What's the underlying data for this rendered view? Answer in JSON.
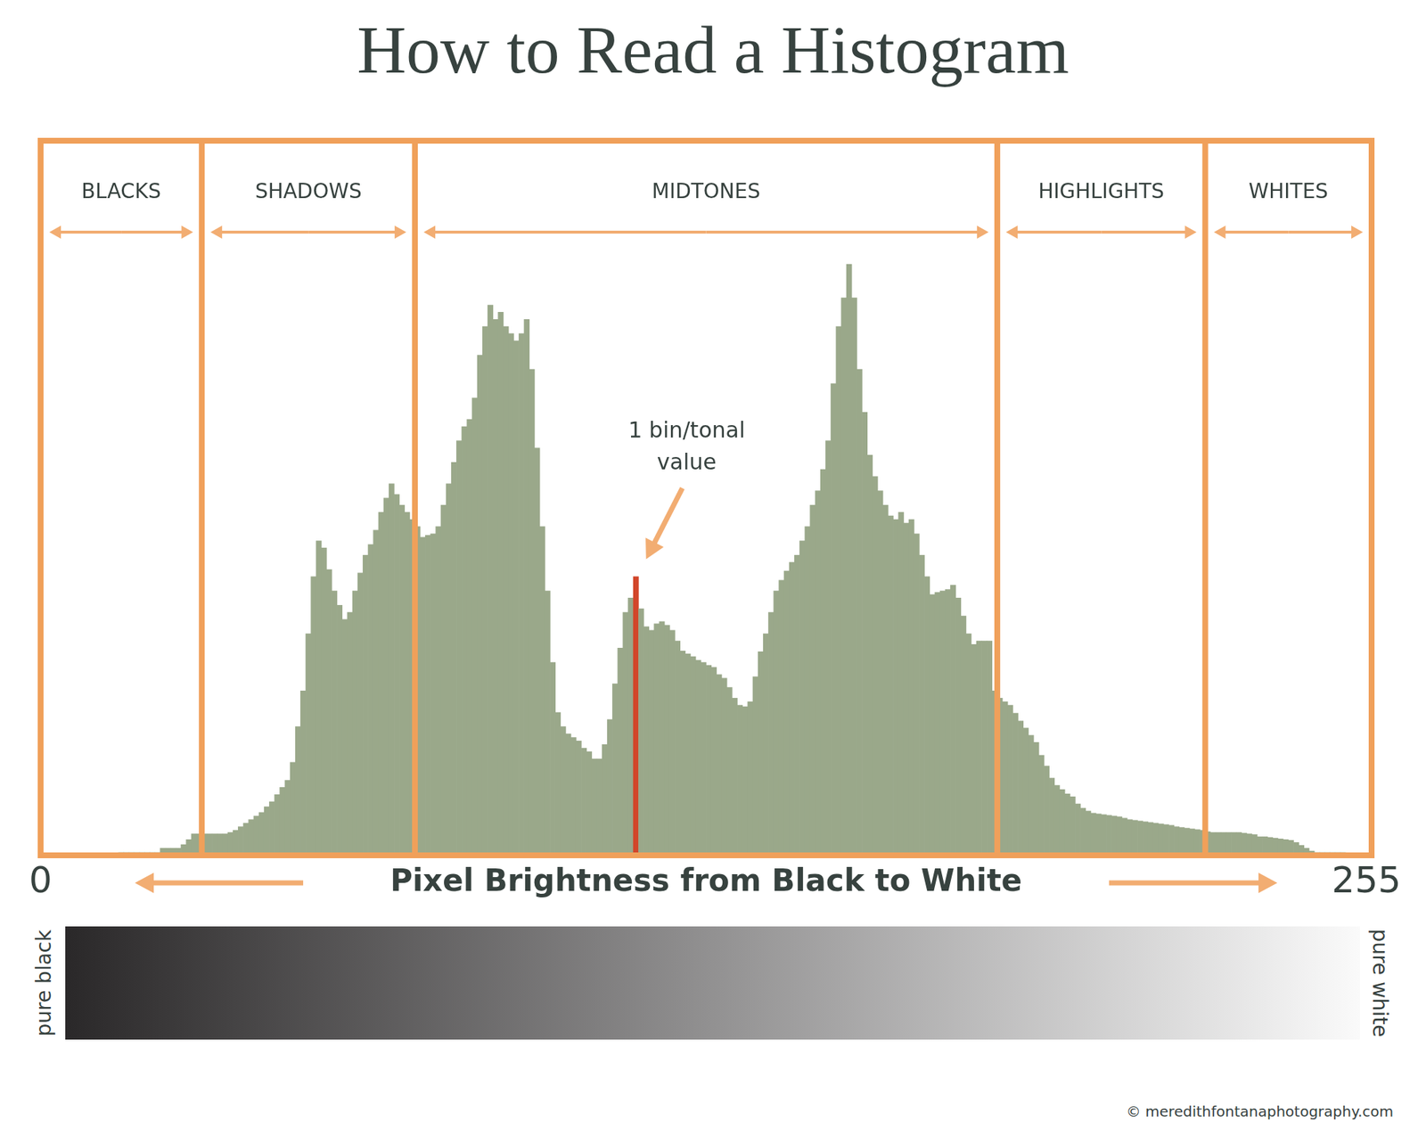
{
  "chart_data": {
    "type": "histogram",
    "title": "How to Read a Histogram",
    "xlabel": "Pixel Brightness from Black to White",
    "bins": [
      0,
      1,
      2,
      3,
      4,
      5,
      6,
      7,
      8,
      9,
      10,
      11,
      12,
      13,
      14,
      15,
      16,
      17,
      18,
      19,
      20,
      21,
      22,
      23,
      24,
      25,
      26,
      27,
      28,
      29,
      30,
      31,
      32,
      33,
      34,
      35,
      36,
      37,
      38,
      39,
      40,
      41,
      42,
      43,
      44,
      45,
      46,
      47,
      48,
      49,
      50,
      51,
      52,
      53,
      54,
      55,
      56,
      57,
      58,
      59,
      60,
      61,
      62,
      63,
      64,
      65,
      66,
      67,
      68,
      69,
      70,
      71,
      72,
      73,
      74,
      75,
      76,
      77,
      78,
      79,
      80,
      81,
      82,
      83,
      84,
      85,
      86,
      87,
      88,
      89,
      90,
      91,
      92,
      93,
      94,
      95,
      96,
      97,
      98,
      99,
      100,
      101,
      102,
      103,
      104,
      105,
      106,
      107,
      108,
      109,
      110,
      111,
      112,
      113,
      114,
      115,
      116,
      117,
      118,
      119,
      120,
      121,
      122,
      123,
      124,
      125,
      126,
      127,
      128,
      129,
      130,
      131,
      132,
      133,
      134,
      135,
      136,
      137,
      138,
      139,
      140,
      141,
      142,
      143,
      144,
      145,
      146,
      147,
      148,
      149,
      150,
      151,
      152,
      153,
      154,
      155,
      156,
      157,
      158,
      159,
      160,
      161,
      162,
      163,
      164,
      165,
      166,
      167,
      168,
      169,
      170,
      171,
      172,
      173,
      174,
      175,
      176,
      177,
      178,
      179,
      180,
      181,
      182,
      183,
      184,
      185,
      186,
      187,
      188,
      189,
      190,
      191,
      192,
      193,
      194,
      195,
      196,
      197,
      198,
      199,
      200,
      201,
      202,
      203,
      204,
      205,
      206,
      207,
      208,
      209,
      210,
      211,
      212,
      213,
      214,
      215,
      216,
      217,
      218,
      219,
      220,
      221,
      222,
      223,
      224,
      225,
      226,
      227,
      228,
      229,
      230,
      231,
      232,
      233,
      234,
      235,
      236,
      237,
      238,
      239,
      240,
      241,
      242,
      243,
      244,
      245,
      246,
      247,
      248,
      249,
      250,
      251,
      252,
      253,
      254,
      255,
      256
    ],
    "values": [
      0,
      0,
      0,
      0,
      0,
      0,
      0,
      0,
      0,
      0,
      0,
      0,
      0,
      0,
      0,
      0.4,
      0.4,
      0.4,
      0.4,
      0.4,
      0.4,
      0.4,
      0.4,
      1,
      1,
      1,
      1,
      1.5,
      2.2,
      3,
      3,
      3,
      3,
      3,
      3,
      3,
      3.2,
      3.5,
      4,
      4.5,
      5,
      5.5,
      6,
      6.8,
      7.5,
      8.5,
      9.5,
      10.5,
      13,
      18,
      23,
      31,
      39,
      44,
      43,
      40,
      37,
      35,
      33,
      34,
      37,
      39.5,
      42,
      43.5,
      45.5,
      48,
      50,
      52,
      50.5,
      49,
      48,
      47,
      46,
      44.5,
      44.8,
      45,
      46,
      49,
      52,
      55,
      58,
      60,
      61,
      64,
      70,
      74,
      77,
      75,
      76,
      74,
      73,
      72,
      73,
      75,
      68,
      57,
      46,
      37,
      27,
      20,
      18,
      17,
      16.5,
      16,
      15,
      14.5,
      13.5,
      13.5,
      15.5,
      19,
      24,
      29,
      34,
      36,
      39,
      34.5,
      32,
      31.5,
      32.4,
      32.7,
      32.2,
      31.5,
      30,
      28.6,
      28.2,
      27.8,
      27.3,
      27,
      26.6,
      26.3,
      25.3,
      24.8,
      23.5,
      22,
      21,
      20.8,
      21.5,
      25,
      28.5,
      31,
      34,
      37,
      38.5,
      39.8,
      41,
      42,
      44,
      46,
      49,
      51,
      54,
      58,
      66,
      74,
      78,
      82.7,
      78,
      68,
      62,
      56,
      53,
      51,
      49,
      47.5,
      47,
      48,
      46.5,
      47,
      45,
      42,
      39,
      36.5,
      36.8,
      37,
      37.2,
      37.8,
      36,
      33.5,
      31,
      29.5,
      30,
      30,
      30,
      23,
      22,
      21.5,
      21,
      19.9,
      18.8,
      17.8,
      16.8,
      15.8,
      14,
      12.5,
      10.8,
      9.8,
      9.2,
      8.6,
      8.2,
      7.2,
      6.6,
      6.2,
      5.9,
      5.8,
      5.7,
      5.6,
      5.5,
      5.4,
      5.2,
      5,
      4.9,
      4.8,
      4.7,
      4.6,
      4.5,
      4.4,
      4.3,
      4.2,
      4,
      3.9,
      3.8,
      3.7,
      3.6,
      3.5,
      3.3,
      3.2,
      3.2,
      3.2,
      3.2,
      3.2,
      3.2,
      3.1,
      3,
      2.9,
      2.6,
      2.6,
      2.5,
      2.4,
      2.3,
      2.2,
      2.1,
      1.8,
      1.4,
      1,
      0.6,
      0.4,
      0.4,
      0.4,
      0.4,
      0.4,
      0.4,
      0.2,
      0,
      0,
      0,
      0
    ],
    "color": "#9aa88a",
    "xlim": [
      0,
      256
    ],
    "xticks": [
      0,
      255
    ],
    "ylim": [
      0,
      100
    ],
    "tick_labels": "x",
    "grid": false,
    "zones": [
      {
        "label": "BLACKS",
        "from": 0,
        "to": 31
      },
      {
        "label": "SHADOWS",
        "from": 31,
        "to": 72
      },
      {
        "label": "MIDTONES",
        "from": 72,
        "to": 184
      },
      {
        "label": "HIGHLIGHTS",
        "from": 184,
        "to": 224
      },
      {
        "label": "WHITES",
        "from": 224,
        "to": 256
      }
    ],
    "annotation": {
      "text": [
        "1 bin/tonal",
        "value"
      ],
      "bin": 114,
      "color": "#d2462a"
    },
    "gradient": {
      "left_label": "pure black",
      "right_label": "pure white"
    },
    "credit": "© meredithfontanaphotography.com"
  }
}
